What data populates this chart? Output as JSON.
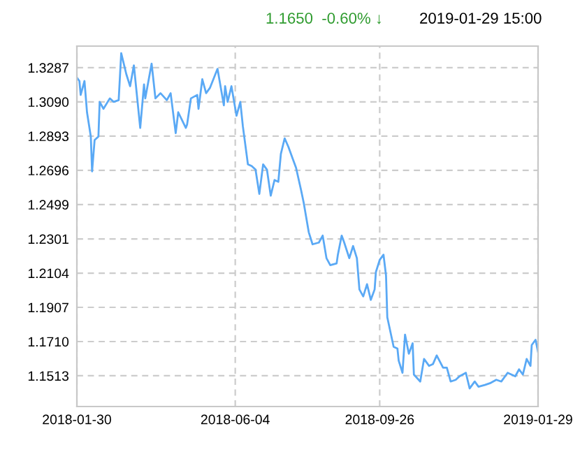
{
  "chart_data": {
    "type": "line",
    "subtitle": "1.1650  -0.60% ↓",
    "annotations": [
      "2019-01-29 15:00"
    ],
    "x": [
      "2018-01-30",
      "2018-02-01",
      "2018-02-02",
      "2018-02-05",
      "2018-02-07",
      "2018-02-10",
      "2018-02-11",
      "2018-02-13",
      "2018-02-16",
      "2018-02-17",
      "2018-02-20",
      "2018-02-25",
      "2018-02-28",
      "2018-03-04",
      "2018-03-06",
      "2018-03-10",
      "2018-03-13",
      "2018-03-16",
      "2018-03-21",
      "2018-03-24",
      "2018-03-25",
      "2018-03-30",
      "2018-04-02",
      "2018-04-06",
      "2018-04-11",
      "2018-04-14",
      "2018-04-18",
      "2018-04-20",
      "2018-04-26",
      "2018-04-27",
      "2018-04-30",
      "2018-05-05",
      "2018-05-06",
      "2018-05-09",
      "2018-05-12",
      "2018-05-15",
      "2018-05-21",
      "2018-05-26",
      "2018-05-27",
      "2018-05-29",
      "2018-06-01",
      "2018-06-05",
      "2018-06-08",
      "2018-06-10",
      "2018-06-14",
      "2018-06-17",
      "2018-06-20",
      "2018-06-23",
      "2018-06-26",
      "2018-06-29",
      "2018-07-02",
      "2018-07-05",
      "2018-07-08",
      "2018-07-10",
      "2018-07-13",
      "2018-07-16",
      "2018-07-19",
      "2018-07-22",
      "2018-07-26",
      "2018-07-28",
      "2018-08-01",
      "2018-08-04",
      "2018-08-09",
      "2018-08-12",
      "2018-08-15",
      "2018-08-18",
      "2018-08-23",
      "2018-08-24",
      "2018-08-27",
      "2018-08-29",
      "2018-09-02",
      "2018-09-05",
      "2018-09-08",
      "2018-09-10",
      "2018-09-13",
      "2018-09-16",
      "2018-09-19",
      "2018-09-22",
      "2018-09-23",
      "2018-09-26",
      "2018-09-29",
      "2018-10-01",
      "2018-10-02",
      "2018-10-07",
      "2018-10-10",
      "2018-10-11",
      "2018-10-14",
      "2018-10-16",
      "2018-10-19",
      "2018-10-22",
      "2018-10-23",
      "2018-10-28",
      "2018-10-31",
      "2018-11-04",
      "2018-11-07",
      "2018-11-10",
      "2018-11-15",
      "2018-11-18",
      "2018-11-21",
      "2018-11-25",
      "2018-11-28",
      "2018-12-03",
      "2018-12-06",
      "2018-12-10",
      "2018-12-13",
      "2018-12-18",
      "2018-12-22",
      "2018-12-27",
      "2018-12-31",
      "2019-01-05",
      "2019-01-08",
      "2019-01-11",
      "2019-01-14",
      "2019-01-17",
      "2019-01-20",
      "2019-01-23",
      "2019-01-24",
      "2019-01-27",
      "2019-01-29"
    ],
    "series": [
      {
        "color": "#5aa9f5",
        "values": [
          1.323,
          1.321,
          1.313,
          1.321,
          1.303,
          1.289,
          1.269,
          1.287,
          1.289,
          1.309,
          1.305,
          1.311,
          1.309,
          1.31,
          1.337,
          1.325,
          1.318,
          1.33,
          1.294,
          1.319,
          1.311,
          1.331,
          1.311,
          1.314,
          1.31,
          1.314,
          1.291,
          1.303,
          1.294,
          1.296,
          1.311,
          1.313,
          1.305,
          1.322,
          1.314,
          1.317,
          1.328,
          1.307,
          1.318,
          1.309,
          1.318,
          1.301,
          1.309,
          1.295,
          1.273,
          1.272,
          1.27,
          1.256,
          1.273,
          1.27,
          1.255,
          1.264,
          1.263,
          1.279,
          1.288,
          1.283,
          1.277,
          1.271,
          1.258,
          1.251,
          1.234,
          1.227,
          1.228,
          1.232,
          1.219,
          1.215,
          1.216,
          1.221,
          1.232,
          1.228,
          1.219,
          1.226,
          1.219,
          1.201,
          1.197,
          1.204,
          1.195,
          1.201,
          1.211,
          1.218,
          1.221,
          1.209,
          1.185,
          1.168,
          1.167,
          1.16,
          1.153,
          1.175,
          1.164,
          1.17,
          1.152,
          1.148,
          1.161,
          1.157,
          1.158,
          1.163,
          1.156,
          1.156,
          1.148,
          1.149,
          1.151,
          1.153,
          1.144,
          1.148,
          1.145,
          1.146,
          1.147,
          1.149,
          1.148,
          1.153,
          1.152,
          1.151,
          1.155,
          1.152,
          1.161,
          1.157,
          1.169,
          1.172,
          1.165
        ]
      }
    ],
    "xlim": [
      "2018-01-30",
      "2019-01-29"
    ],
    "xticks": [
      "2018-01-30",
      "2018-06-04",
      "2018-09-26",
      "2019-01-29"
    ],
    "ylim": [
      1.1336,
      1.3411
    ],
    "yticks": [
      {
        "value": 1.1513,
        "label": "1.1513"
      },
      {
        "value": 1.171,
        "label": "1.1710"
      },
      {
        "value": 1.1907,
        "label": "1.1907"
      },
      {
        "value": 1.2104,
        "label": "1.2104"
      },
      {
        "value": 1.2301,
        "label": "1.2301"
      },
      {
        "value": 1.2499,
        "label": "1.2499"
      },
      {
        "value": 1.2696,
        "label": "1.2696"
      },
      {
        "value": 1.2893,
        "label": "1.2893"
      },
      {
        "value": 1.309,
        "label": "1.3090"
      },
      {
        "value": 1.3287,
        "label": "1.3287"
      }
    ],
    "grid": true
  }
}
